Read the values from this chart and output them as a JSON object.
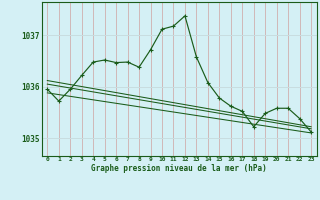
{
  "title": "Graphe pression niveau de la mer (hPa)",
  "bg_color": "#d4f0f5",
  "grid_color_v": "#d0b8b8",
  "grid_color_h": "#c8dde0",
  "line_color": "#1a5c1a",
  "ylim": [
    1034.65,
    1037.65
  ],
  "yticks": [
    1035,
    1036,
    1037
  ],
  "main_y": [
    1035.95,
    1035.72,
    1035.95,
    1036.22,
    1036.48,
    1036.52,
    1036.47,
    1036.48,
    1036.38,
    1036.72,
    1037.12,
    1037.18,
    1037.38,
    1036.58,
    1036.08,
    1035.78,
    1035.62,
    1035.52,
    1035.22,
    1035.48,
    1035.58,
    1035.58,
    1035.38,
    1035.12
  ],
  "trend_lines": [
    {
      "x": [
        0,
        23
      ],
      "y": [
        1036.05,
        1035.18
      ]
    },
    {
      "x": [
        0,
        23
      ],
      "y": [
        1036.12,
        1035.22
      ]
    },
    {
      "x": [
        0,
        23
      ],
      "y": [
        1035.88,
        1035.1
      ]
    }
  ],
  "figsize": [
    3.2,
    2.0
  ],
  "dpi": 100
}
